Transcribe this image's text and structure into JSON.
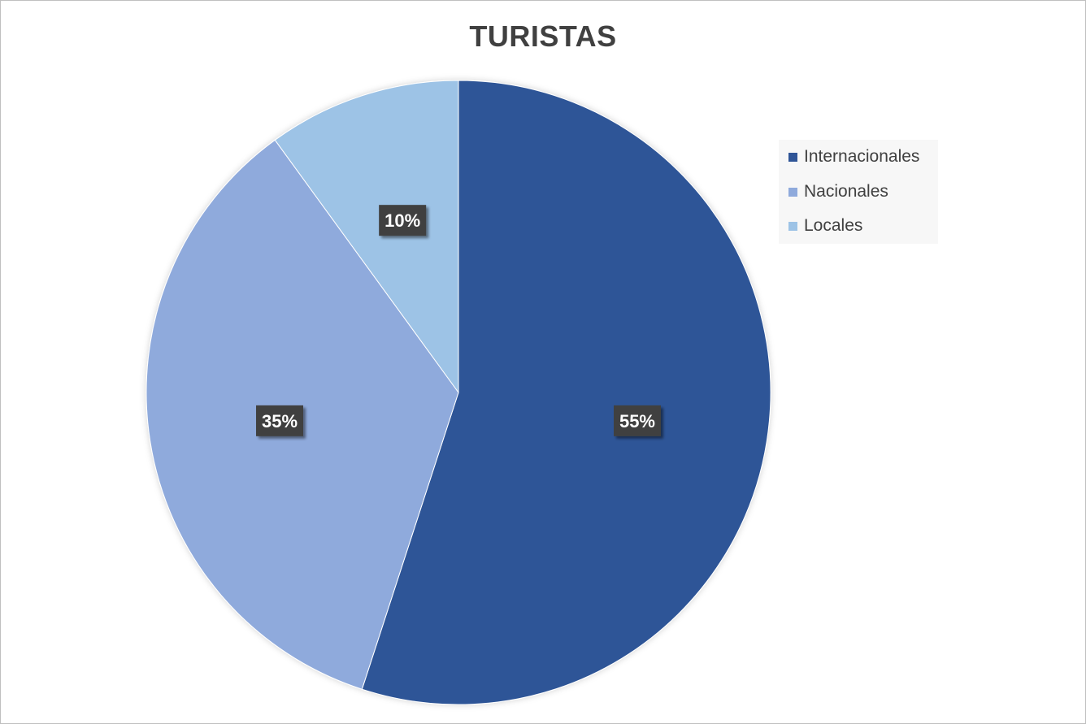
{
  "chart_data": {
    "type": "pie",
    "title": "TURISTAS",
    "categories": [
      "Internacionales",
      "Nacionales",
      "Locales"
    ],
    "values": [
      55,
      35,
      10
    ],
    "data_labels": [
      "55%",
      "35%",
      "10%"
    ],
    "colors": [
      "#2F5597",
      "#8FAADC",
      "#9DC3E6"
    ],
    "legend_position": "right"
  }
}
